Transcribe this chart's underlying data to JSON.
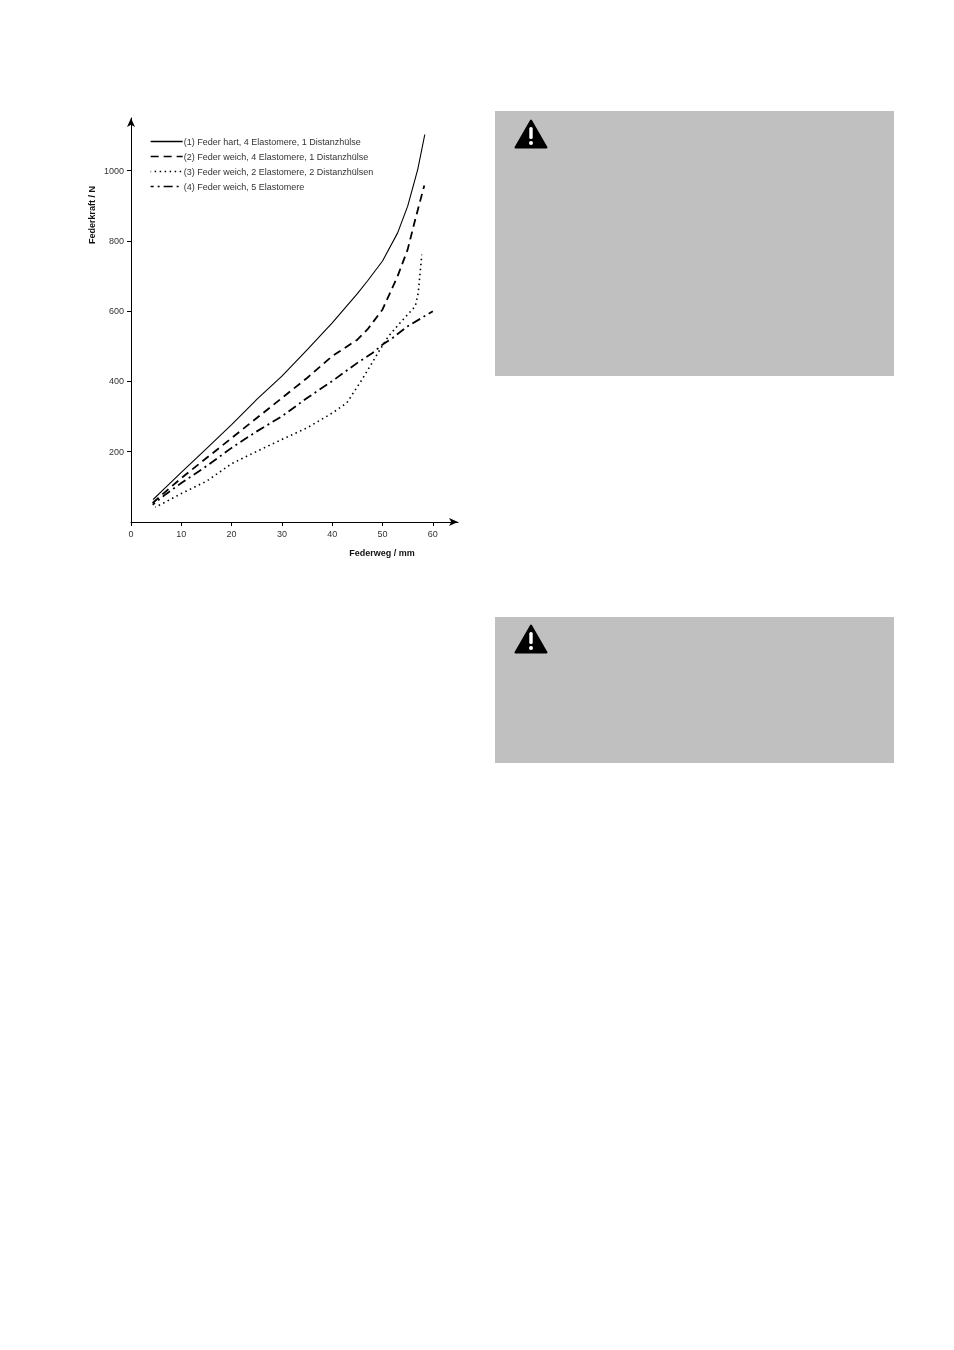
{
  "chart_data": {
    "type": "line",
    "xlabel": "Federweg / mm",
    "ylabel": "Federkraft / N",
    "xlim": [
      0,
      65
    ],
    "xticks": [
      0,
      10,
      20,
      30,
      40,
      50,
      60
    ],
    "ylim": [
      0,
      1150
    ],
    "yticks": [
      200,
      400,
      600,
      800,
      1000
    ],
    "grid": false,
    "legend": "top left",
    "marker": "none",
    "series": [
      {
        "name": "(1) Feder hart, 4 Elastomere, 1 Distanzhülse",
        "color": "#000000",
        "line_style": "solid",
        "x": [
          4.4,
          7,
          10,
          15,
          20,
          25,
          30,
          35,
          40,
          45,
          47,
          50,
          53,
          55,
          57,
          58.4
        ],
        "values": [
          64,
          100,
          141,
          209,
          277,
          349,
          415,
          490,
          567,
          650,
          686,
          743,
          823,
          899,
          1004,
          1103
        ]
      },
      {
        "name": "(2) Feder weich, 4 Elastomere, 1 Distanzhülse",
        "color": "#000000",
        "line_style": "dashed",
        "x": [
          4.3,
          7,
          10,
          15,
          20,
          25,
          30,
          35,
          40,
          45,
          47,
          50,
          53,
          55,
          56.5,
          58.3
        ],
        "values": [
          54,
          88,
          125,
          182,
          239,
          296,
          353,
          410,
          472,
          519,
          548,
          605,
          700,
          776,
          861,
          958
        ]
      },
      {
        "name": "(3) Feder weich, 2 Elastomere, 2 Distanzhülsen",
        "color": "#000000",
        "line_style": "dotted",
        "x": [
          4.8,
          7,
          10,
          15,
          20,
          25,
          30,
          35,
          40,
          42.9,
          45.9,
          47.5,
          49.5,
          51.2,
          53.5,
          56.5,
          57.1,
          57.8
        ],
        "values": [
          42,
          58,
          81,
          116,
          166,
          201,
          235,
          268,
          310,
          339,
          405,
          443,
          491,
          529,
          567,
          614,
          652,
          761
        ]
      },
      {
        "name": "(4) Feder weich, 5 Elastomere",
        "color": "#000000",
        "line_style": "dashdot",
        "x": [
          4.3,
          7,
          10,
          15,
          20,
          25,
          30,
          35,
          40,
          45,
          48,
          50,
          52,
          55,
          60
        ],
        "values": [
          49,
          80,
          111,
          159,
          211,
          258,
          301,
          353,
          401,
          453,
          481,
          505,
          524,
          557,
          600
        ]
      }
    ]
  }
}
